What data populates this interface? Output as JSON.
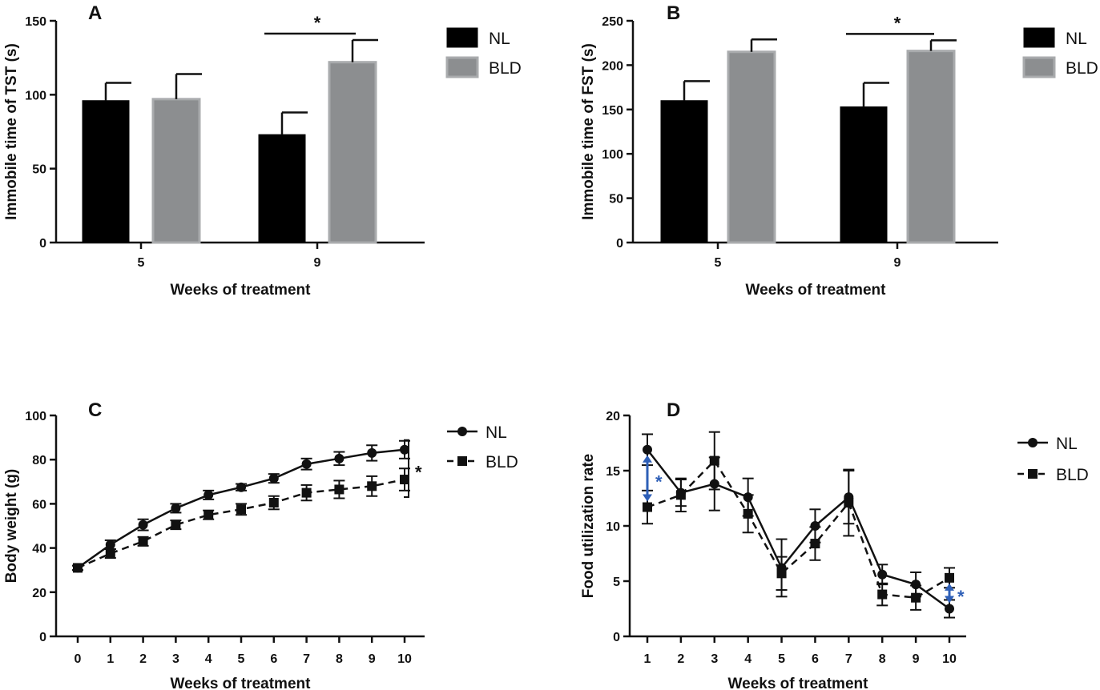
{
  "chart_data": [
    {
      "panel": "A",
      "type": "bar",
      "xlabel": "Weeks of treatment",
      "ylabel": "Immobile time of TST (s)",
      "ylim": [
        0,
        150
      ],
      "yticks": [
        0,
        50,
        100,
        150
      ],
      "categories": [
        "5",
        "9"
      ],
      "series": [
        {
          "name": "NL",
          "values": [
            96,
            73
          ],
          "errors": [
            12,
            15
          ],
          "color": "#000000"
        },
        {
          "name": "BLD",
          "values": [
            97,
            122
          ],
          "errors": [
            17,
            15
          ],
          "color": "#8c8e90"
        }
      ],
      "significance": [
        {
          "category": "9",
          "label": "*"
        }
      ],
      "legend": "right"
    },
    {
      "panel": "B",
      "type": "bar",
      "xlabel": "Weeks of treatment",
      "ylabel": "Immobile time of FST (s)",
      "ylim": [
        0,
        250
      ],
      "yticks": [
        0,
        50,
        100,
        150,
        200,
        250
      ],
      "categories": [
        "5",
        "9"
      ],
      "series": [
        {
          "name": "NL",
          "values": [
            160,
            153
          ],
          "errors": [
            22,
            27
          ],
          "color": "#000000"
        },
        {
          "name": "BLD",
          "values": [
            215,
            216
          ],
          "errors": [
            14,
            12
          ],
          "color": "#8c8e90"
        }
      ],
      "significance": [
        {
          "category": "9",
          "label": "*"
        }
      ],
      "legend": "right"
    },
    {
      "panel": "C",
      "type": "line",
      "xlabel": "Weeks of treatment",
      "ylabel": "Body weight (g)",
      "ylim": [
        0,
        100
      ],
      "yticks": [
        0,
        20,
        40,
        60,
        80,
        100
      ],
      "x": [
        0,
        1,
        2,
        3,
        4,
        5,
        6,
        7,
        8,
        9,
        10
      ],
      "series": [
        {
          "name": "NL",
          "marker": "circle",
          "dash": false,
          "values": [
            31,
            41.5,
            50.5,
            58,
            64,
            67.5,
            71.5,
            78,
            80.5,
            83,
            84.5
          ],
          "errors": [
            1,
            2,
            2.5,
            2,
            2,
            1.5,
            2,
            2.5,
            3,
            3.5,
            4
          ]
        },
        {
          "name": "BLD",
          "marker": "square",
          "dash": true,
          "values": [
            31,
            37.5,
            43,
            50.5,
            55,
            57.5,
            60.5,
            65,
            66.5,
            68,
            71
          ],
          "errors": [
            1,
            2,
            2,
            2,
            2,
            2.5,
            3,
            3.5,
            4,
            4.5,
            5
          ]
        }
      ],
      "significance": [
        {
          "label": "*",
          "position": "right"
        }
      ],
      "legend": "right"
    },
    {
      "panel": "D",
      "type": "line",
      "xlabel": "Weeks of treatment",
      "ylabel": "Food utilization rate",
      "ylim": [
        0,
        20
      ],
      "yticks": [
        0,
        5,
        10,
        15,
        20
      ],
      "x": [
        1,
        2,
        3,
        4,
        5,
        6,
        7,
        8,
        9,
        10
      ],
      "series": [
        {
          "name": "NL",
          "marker": "circle",
          "dash": false,
          "values": [
            16.9,
            13,
            13.8,
            12.6,
            6.2,
            10,
            12.6,
            5.6,
            4.7,
            2.5
          ],
          "errors": [
            1.4,
            1.2,
            2.4,
            1.7,
            2.6,
            1.5,
            2.4,
            0.9,
            1.1,
            0.8
          ]
        },
        {
          "name": "BLD",
          "marker": "square",
          "dash": true,
          "values": [
            11.7,
            12.8,
            15.9,
            11.1,
            5.7,
            8.4,
            12.1,
            3.8,
            3.5,
            5.3
          ],
          "errors": [
            1.5,
            1.5,
            2.6,
            1.7,
            1.5,
            1.5,
            3.0,
            1.0,
            1.1,
            0.9
          ]
        }
      ],
      "significance": [
        {
          "x": 1,
          "label": "*",
          "color": "#2e5fb7"
        },
        {
          "x": 10,
          "label": "*",
          "color": "#2e5fb7"
        }
      ],
      "legend": "right"
    }
  ]
}
